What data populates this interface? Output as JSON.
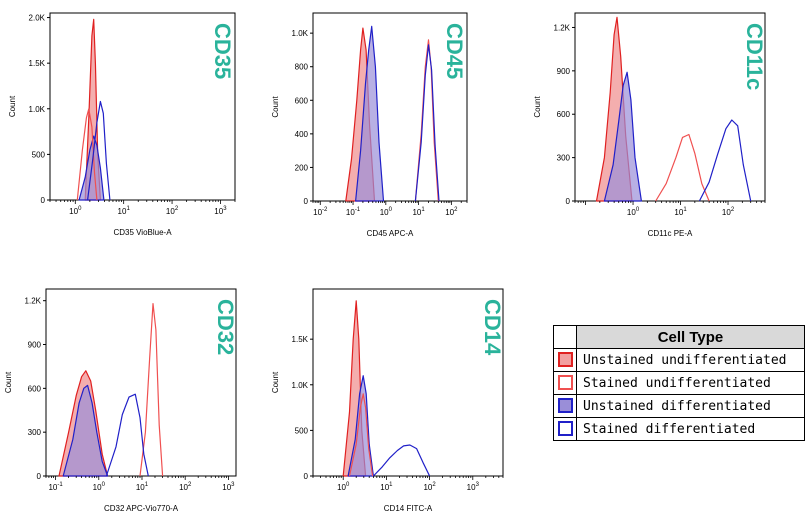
{
  "chart_data": [
    {
      "type": "area",
      "title": "CD35",
      "xlabel": "CD35 VioBlue-A",
      "ylabel": "Count",
      "xscale": "log",
      "xlim": [
        0.3,
        2000
      ],
      "x_ticks": [
        "10^0",
        "10^1",
        "10^2",
        "10^3"
      ],
      "ylim": [
        0,
        2050
      ],
      "y_ticks": [
        "0",
        "500",
        "1.0K",
        "1.5K",
        "2.0K"
      ],
      "series": [
        {
          "name": "Unstained undifferentiated",
          "x": [
            1.6,
            1.9,
            2.2,
            2.4,
            2.6,
            2.9,
            3.3
          ],
          "y": [
            0,
            900,
            1800,
            1980,
            1500,
            500,
            0
          ]
        },
        {
          "name": "Stained undifferentiated",
          "x": [
            1.1,
            1.4,
            1.7,
            1.9,
            2.2,
            2.5,
            2.8
          ],
          "y": [
            0,
            550,
            900,
            1000,
            800,
            300,
            0
          ]
        },
        {
          "name": "Unstained differentiated",
          "x": [
            1.2,
            1.6,
            2.0,
            2.4,
            2.8,
            3.3,
            3.9
          ],
          "y": [
            0,
            250,
            550,
            700,
            600,
            350,
            0
          ]
        },
        {
          "name": "Stained differentiated",
          "x": [
            1.8,
            2.3,
            2.8,
            3.3,
            3.8,
            4.4,
            5.2
          ],
          "y": [
            0,
            450,
            850,
            1080,
            950,
            400,
            0
          ]
        }
      ]
    },
    {
      "type": "area",
      "title": "CD45",
      "xlabel": "CD45 APC-A",
      "ylabel": "Count",
      "xscale": "log",
      "xlim": [
        0.006,
        300
      ],
      "x_ticks": [
        "10^-2",
        "10^-1",
        "10^0",
        "10^1",
        "10^2"
      ],
      "ylim": [
        0,
        1120
      ],
      "y_ticks": [
        "0",
        "200",
        "400",
        "600",
        "800",
        "1.0K"
      ],
      "series": [
        {
          "name": "Unstained undifferentiated",
          "x": [
            0.06,
            0.09,
            0.13,
            0.17,
            0.2,
            0.25,
            0.32,
            0.45
          ],
          "y": [
            0,
            250,
            600,
            900,
            1030,
            900,
            450,
            0
          ]
        },
        {
          "name": "Stained undifferentiated",
          "x": [
            8,
            12,
            16,
            20,
            24,
            30,
            40
          ],
          "y": [
            0,
            400,
            800,
            960,
            800,
            350,
            0
          ]
        },
        {
          "name": "Unstained differentiated",
          "x": [
            0.12,
            0.17,
            0.24,
            0.3,
            0.37,
            0.48,
            0.62,
            0.85
          ],
          "y": [
            0,
            300,
            700,
            900,
            1040,
            800,
            350,
            0
          ]
        },
        {
          "name": "Stained differentiated",
          "x": [
            8,
            12,
            16,
            20,
            25,
            32,
            42
          ],
          "y": [
            0,
            350,
            750,
            930,
            780,
            330,
            0
          ]
        }
      ]
    },
    {
      "type": "area",
      "title": "CD11c",
      "xlabel": "CD11c PE-A",
      "ylabel": "Count",
      "xscale": "log",
      "xlim": [
        0.06,
        600
      ],
      "x_ticks": [
        "10^0",
        "10^1",
        "10^2"
      ],
      "ylim": [
        0,
        1300
      ],
      "y_ticks": [
        "0",
        "300",
        "600",
        "900",
        "1.2K"
      ],
      "series": [
        {
          "name": "Unstained undifferentiated",
          "x": [
            0.17,
            0.25,
            0.33,
            0.4,
            0.46,
            0.55,
            0.7,
            0.95
          ],
          "y": [
            0,
            300,
            750,
            1150,
            1270,
            1000,
            450,
            0
          ]
        },
        {
          "name": "Stained undifferentiated",
          "x": [
            3,
            5,
            8,
            11,
            15,
            20,
            28,
            40
          ],
          "y": [
            0,
            120,
            300,
            440,
            460,
            330,
            120,
            0
          ]
        },
        {
          "name": "Unstained differentiated",
          "x": [
            0.25,
            0.38,
            0.5,
            0.62,
            0.75,
            0.9,
            1.1,
            1.5
          ],
          "y": [
            0,
            250,
            550,
            800,
            890,
            700,
            300,
            0
          ]
        },
        {
          "name": "Stained differentiated",
          "x": [
            25,
            40,
            60,
            90,
            120,
            160,
            210,
            300
          ],
          "y": [
            0,
            130,
            320,
            500,
            560,
            520,
            250,
            0
          ]
        }
      ]
    },
    {
      "type": "area",
      "title": "CD32",
      "xlabel": "CD32 APC-Vio770-A",
      "ylabel": "Count",
      "xscale": "log",
      "xlim": [
        0.06,
        1500
      ],
      "x_ticks": [
        "10^-1",
        "10^0",
        "10^1",
        "10^2",
        "10^3"
      ],
      "ylim": [
        0,
        1280
      ],
      "y_ticks": [
        "0",
        "300",
        "600",
        "900",
        "1.2K"
      ],
      "series": [
        {
          "name": "Unstained undifferentiated",
          "x": [
            0.12,
            0.2,
            0.3,
            0.4,
            0.5,
            0.65,
            0.85,
            1.2,
            1.6
          ],
          "y": [
            0,
            300,
            550,
            680,
            720,
            650,
            450,
            150,
            0
          ]
        },
        {
          "name": "Stained undifferentiated",
          "x": [
            9,
            12,
            15,
            18,
            21,
            25,
            30
          ],
          "y": [
            0,
            300,
            800,
            1180,
            1000,
            350,
            0
          ]
        },
        {
          "name": "Unstained differentiated",
          "x": [
            0.15,
            0.25,
            0.35,
            0.45,
            0.55,
            0.7,
            0.9,
            1.2,
            1.6
          ],
          "y": [
            0,
            250,
            500,
            600,
            620,
            500,
            300,
            100,
            0
          ]
        },
        {
          "name": "Stained differentiated",
          "x": [
            1.5,
            2.5,
            3.5,
            5,
            7,
            9,
            11,
            14
          ],
          "y": [
            0,
            200,
            420,
            540,
            560,
            400,
            150,
            0
          ]
        }
      ]
    },
    {
      "type": "area",
      "title": "CD14",
      "xlabel": "CD14 FITC-A",
      "ylabel": "Count",
      "xscale": "log",
      "xlim": [
        0.2,
        5000
      ],
      "x_ticks": [
        "10^0",
        "10^1",
        "10^2",
        "10^3"
      ],
      "ylim": [
        0,
        2050
      ],
      "y_ticks": [
        "0",
        "500",
        "1.0K",
        "1.5K"
      ],
      "series": [
        {
          "name": "Unstained undifferentiated",
          "x": [
            1.0,
            1.4,
            1.7,
            2.0,
            2.3,
            2.7,
            3.3
          ],
          "y": [
            0,
            700,
            1500,
            1920,
            1500,
            500,
            0
          ]
        },
        {
          "name": "Stained undifferentiated",
          "x": [
            1.4,
            2.0,
            2.5,
            2.9,
            3.3,
            3.9,
            4.8
          ],
          "y": [
            0,
            350,
            750,
            900,
            750,
            300,
            0
          ]
        },
        {
          "name": "Unstained differentiated",
          "x": [
            1.3,
            1.9,
            2.4,
            2.9,
            3.4,
            4.0,
            5.0
          ],
          "y": [
            0,
            400,
            900,
            1100,
            900,
            350,
            0
          ]
        },
        {
          "name": "Stained differentiated",
          "x": [
            5,
            8,
            12,
            18,
            25,
            35,
            50,
            70,
            100
          ],
          "y": [
            0,
            100,
            200,
            280,
            330,
            340,
            300,
            150,
            0
          ]
        }
      ]
    }
  ],
  "legend": {
    "title": "Cell Type",
    "items": [
      {
        "label": "Unstained undifferentiated",
        "color": "#e02020",
        "filled": true
      },
      {
        "label": "Stained undifferentiated",
        "color": "#f05050",
        "filled": false
      },
      {
        "label": "Unstained differentiated",
        "color": "#2020c8",
        "filled": true
      },
      {
        "label": "Stained differentiated",
        "color": "#2020c8",
        "filled": false
      }
    ]
  },
  "colors": {
    "title": "#2ab39b",
    "red": "#e02020",
    "light_red": "#f05050",
    "blue": "#2020c8",
    "red_fill": "#f2a0a0",
    "blue_fill": "#9a8ed8"
  }
}
